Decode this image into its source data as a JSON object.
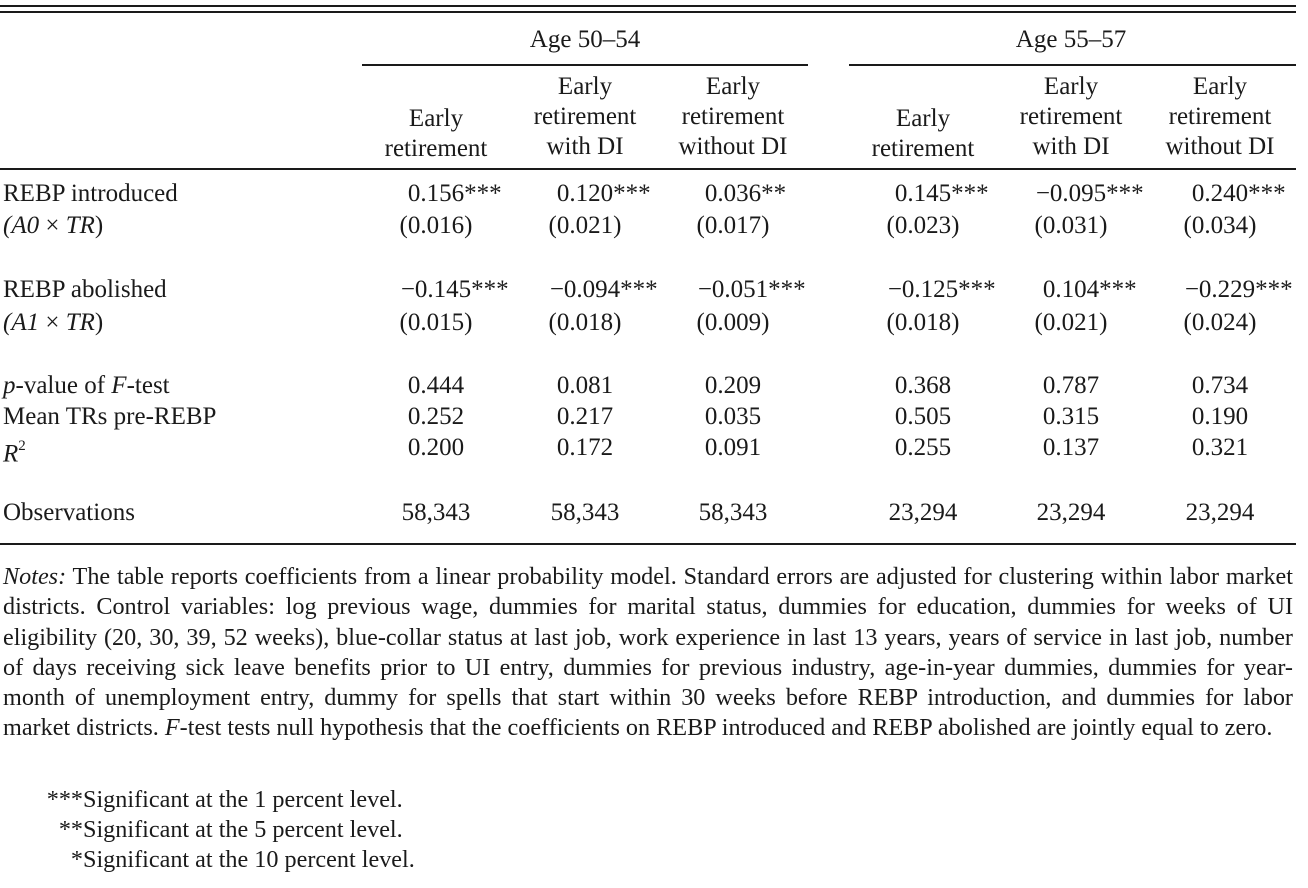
{
  "table": {
    "group_headers": [
      "Age 50–54",
      "Age 55–57"
    ],
    "column_headers": [
      [
        "Early",
        "retirement"
      ],
      [
        "Early",
        "retirement",
        "with DI"
      ],
      [
        "Early",
        "retirement",
        "without DI"
      ],
      [
        "Early",
        "retirement"
      ],
      [
        "Early",
        "retirement",
        "with DI"
      ],
      [
        "Early",
        "retirement",
        "without DI"
      ]
    ],
    "rows": {
      "introduced": {
        "label": "REBP introduced",
        "sublabel_prefix": "(A0 × ",
        "sublabel_italic": "TR",
        "sublabel_suffix": ")",
        "coef": [
          "0.156",
          "0.120",
          "0.036",
          "0.145",
          "−0.095",
          "0.240"
        ],
        "stars": [
          "***",
          "***",
          "**",
          "***",
          "***",
          "***"
        ],
        "se": [
          "(0.016)",
          "(0.021)",
          "(0.017)",
          "(0.023)",
          "(0.031)",
          "(0.034)"
        ]
      },
      "abolished": {
        "label": "REBP abolished",
        "sublabel_prefix": "(A1 × ",
        "sublabel_italic": "TR",
        "sublabel_suffix": ")",
        "coef": [
          "−0.145",
          "−0.094",
          "−0.051",
          "−0.125",
          "0.104",
          "−0.229"
        ],
        "stars": [
          "***",
          "***",
          "***",
          "***",
          "***",
          "***"
        ],
        "se": [
          "(0.015)",
          "(0.018)",
          "(0.009)",
          "(0.018)",
          "(0.021)",
          "(0.024)"
        ]
      },
      "pvalue": {
        "label_italic_p": "p",
        "label_mid": "-value of ",
        "label_italic_f": "F",
        "label_end": "-test",
        "values": [
          "0.444",
          "0.081",
          "0.209",
          "0.368",
          "0.787",
          "0.734"
        ]
      },
      "mean": {
        "label": "Mean TRs pre-REBP",
        "values": [
          "0.252",
          "0.217",
          "0.035",
          "0.505",
          "0.315",
          "0.190"
        ]
      },
      "r2": {
        "label": "R",
        "label_sup": "2",
        "values": [
          "0.200",
          "0.172",
          "0.091",
          "0.255",
          "0.137",
          "0.321"
        ]
      },
      "obs": {
        "label": "Observations",
        "values": [
          "58,343",
          "58,343",
          "58,343",
          "23,294",
          "23,294",
          "23,294"
        ]
      }
    }
  },
  "notes": {
    "label": "Notes:",
    "text_1": " The table reports coefficients from a linear probability model. Standard errors are adjusted for clustering within labor market districts. Control variables: log previous wage, dummies for marital status, dummies for education, dummies for weeks of UI eligibility (20, 30, 39, 52 weeks), blue-collar status at last job, work experience in last 13 years, years of service in last job, number of days receiving sick leave benefits prior to UI entry, dummies for previous industry, age-in-year dummies, dummies for year-month of unemployment entry, dummy for spells that start within 30 weeks before REBP introduction, and dummies for labor market districts. ",
    "f_italic": "F",
    "text_2": "-test tests null hypothesis that the coefficients on REBP introduced and REBP abolished are jointly equal to zero.",
    "significance": [
      {
        "marks": "***",
        "text": "Significant at the 1 percent level."
      },
      {
        "marks": "**",
        "text": "Significant at the 5 percent level."
      },
      {
        "marks": "*",
        "text": "Significant at the 10 percent level."
      }
    ]
  }
}
